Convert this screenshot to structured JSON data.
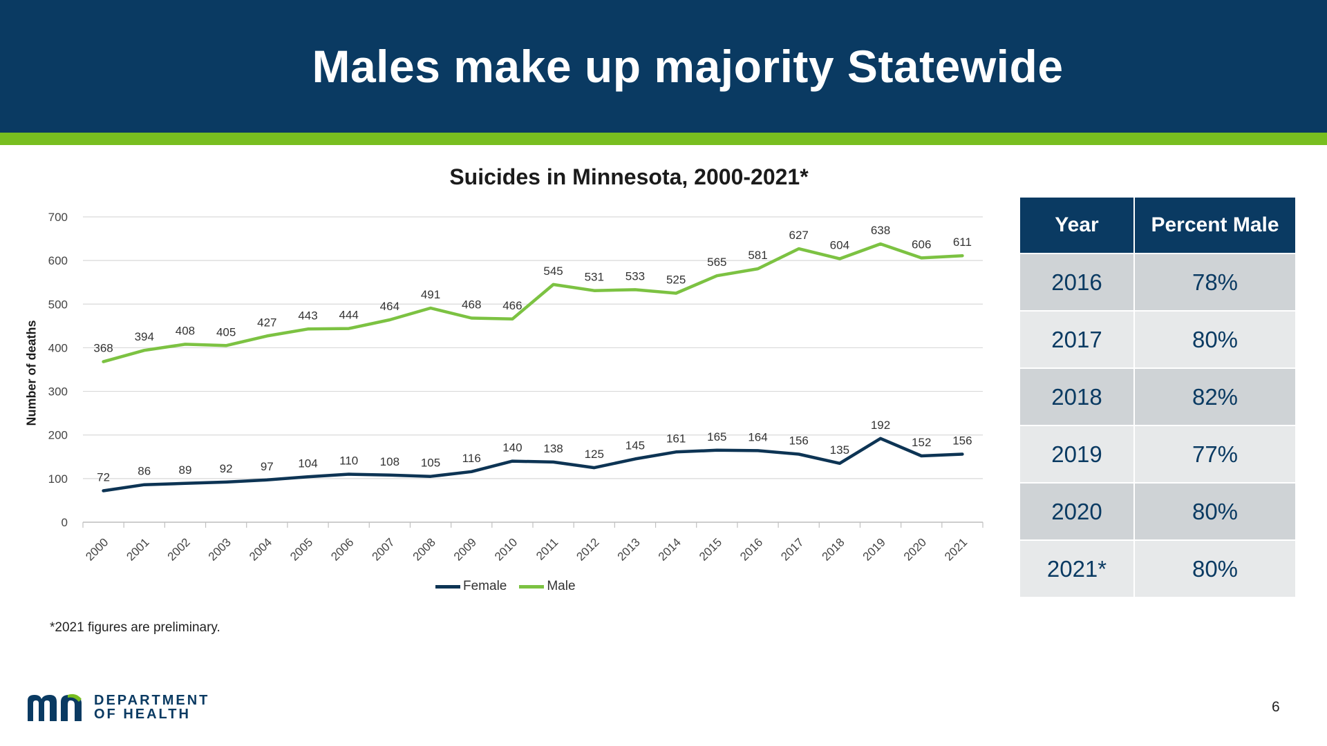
{
  "slide": {
    "title": "Males make up majority Statewide",
    "footnote": "*2021 figures are preliminary.",
    "page_number": "6",
    "logo": {
      "line1": "DEPARTMENT",
      "line2": "OF HEALTH"
    }
  },
  "colors": {
    "header": "#0a3a62",
    "accent": "#78be20",
    "female": "#0d3454",
    "male": "#7cc242"
  },
  "chart_data": {
    "type": "line",
    "title": "Suicides in Minnesota, 2000-2021*",
    "xlabel": "",
    "ylabel": "Number of deaths",
    "ylim": [
      0,
      700
    ],
    "yticks": [
      0,
      100,
      200,
      300,
      400,
      500,
      600,
      700
    ],
    "grid": true,
    "legend_position": "bottom",
    "x": [
      "2000",
      "2001",
      "2002",
      "2003",
      "2004",
      "2005",
      "2006",
      "2007",
      "2008",
      "2009",
      "2010",
      "2011",
      "2012",
      "2013",
      "2014",
      "2015",
      "2016",
      "2017",
      "2018",
      "2019",
      "2020",
      "2021"
    ],
    "series": [
      {
        "name": "Female",
        "values": [
          72,
          86,
          89,
          92,
          97,
          104,
          110,
          108,
          105,
          116,
          140,
          138,
          125,
          145,
          161,
          165,
          164,
          156,
          135,
          192,
          152,
          156
        ]
      },
      {
        "name": "Male",
        "values": [
          368,
          394,
          408,
          405,
          427,
          443,
          444,
          464,
          491,
          468,
          466,
          545,
          531,
          533,
          525,
          565,
          581,
          627,
          604,
          638,
          606,
          611
        ]
      }
    ]
  },
  "table": {
    "headers": [
      "Year",
      "Percent Male"
    ],
    "rows": [
      [
        "2016",
        "78%"
      ],
      [
        "2017",
        "80%"
      ],
      [
        "2018",
        "82%"
      ],
      [
        "2019",
        "77%"
      ],
      [
        "2020",
        "80%"
      ],
      [
        "2021*",
        "80%"
      ]
    ]
  }
}
